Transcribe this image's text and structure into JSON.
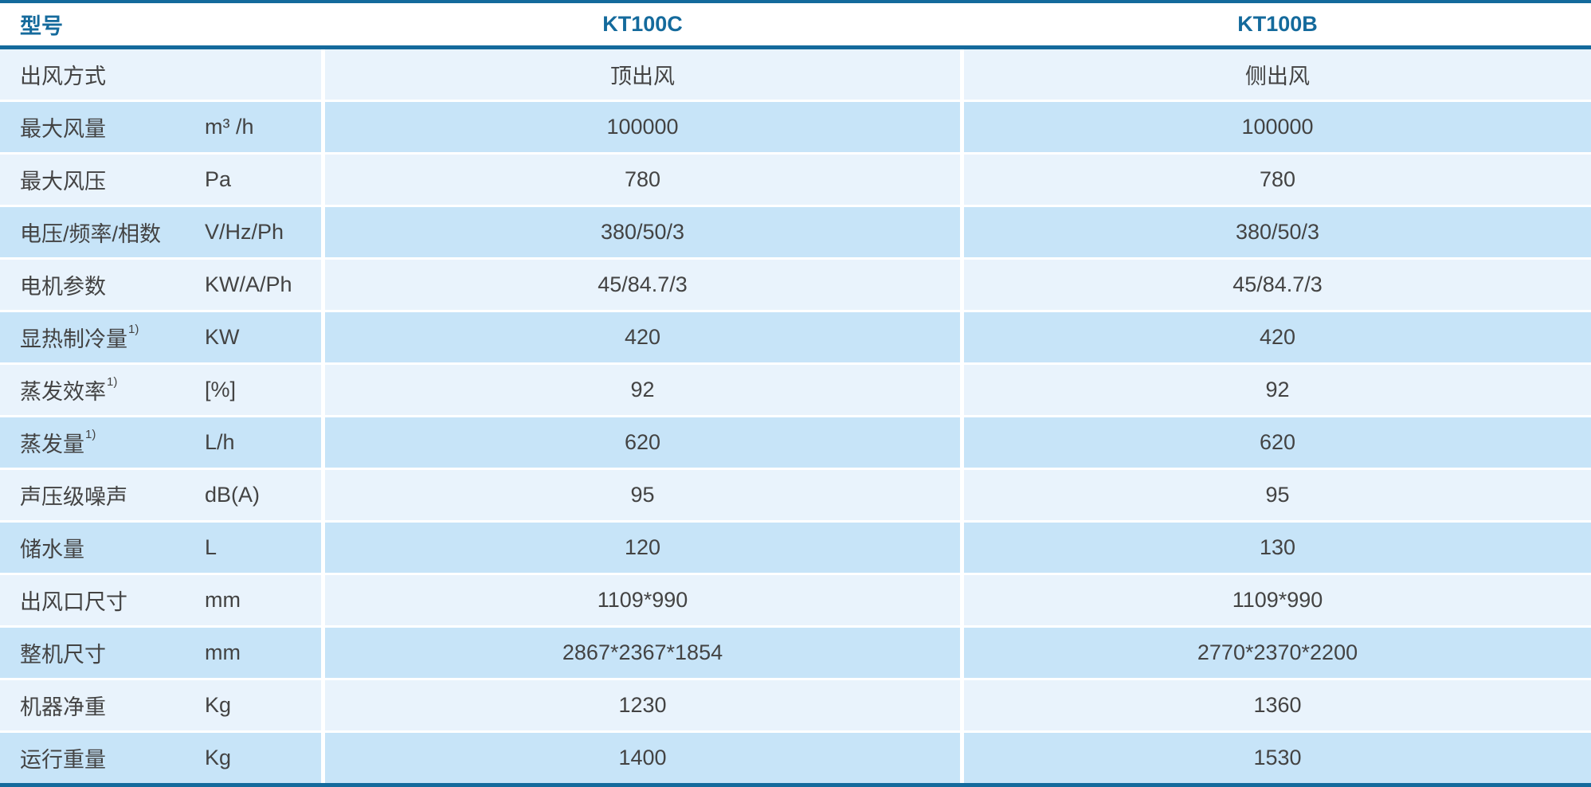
{
  "chart_data": {
    "type": "table",
    "title": "",
    "columns": [
      "型号",
      "KT100C",
      "KT100B"
    ],
    "rows": [
      {
        "label": "出风方式",
        "sup": "",
        "unit": "",
        "kt100c": "顶出风",
        "kt100b": "侧出风"
      },
      {
        "label": "最大风量",
        "sup": "",
        "unit": "m³ /h",
        "kt100c": "100000",
        "kt100b": "100000"
      },
      {
        "label": "最大风压",
        "sup": "",
        "unit": "Pa",
        "kt100c": "780",
        "kt100b": "780"
      },
      {
        "label": "电压/频率/相数",
        "sup": "",
        "unit": "V/Hz/Ph",
        "kt100c": "380/50/3",
        "kt100b": "380/50/3"
      },
      {
        "label": "电机参数",
        "sup": "",
        "unit": "KW/A/Ph",
        "kt100c": "45/84.7/3",
        "kt100b": "45/84.7/3"
      },
      {
        "label": "显热制冷量",
        "sup": "1)",
        "unit": "KW",
        "kt100c": "420",
        "kt100b": "420"
      },
      {
        "label": "蒸发效率",
        "sup": "1)",
        "unit": "[%]",
        "kt100c": "92",
        "kt100b": "92"
      },
      {
        "label": "蒸发量",
        "sup": "1)",
        "unit": "L/h",
        "kt100c": "620",
        "kt100b": "620"
      },
      {
        "label": "声压级噪声",
        "sup": "",
        "unit": "dB(A)",
        "kt100c": "95",
        "kt100b": "95"
      },
      {
        "label": "储水量",
        "sup": "",
        "unit": "L",
        "kt100c": "120",
        "kt100b": "130"
      },
      {
        "label": "出风口尺寸",
        "sup": "",
        "unit": "mm",
        "kt100c": "1109*990",
        "kt100b": "1109*990"
      },
      {
        "label": "整机尺寸",
        "sup": "",
        "unit": "mm",
        "kt100c": "2867*2367*1854",
        "kt100b": "2770*2370*2200"
      },
      {
        "label": "机器净重",
        "sup": "",
        "unit": "Kg",
        "kt100c": "1230",
        "kt100b": "1360"
      },
      {
        "label": "运行重量",
        "sup": "",
        "unit": "Kg",
        "kt100c": "1400",
        "kt100b": "1530"
      }
    ]
  },
  "colors": {
    "accent_blue": "#146a9c",
    "row_light": "#e9f3fc",
    "row_dark": "#c7e4f8",
    "text": "#434343"
  }
}
